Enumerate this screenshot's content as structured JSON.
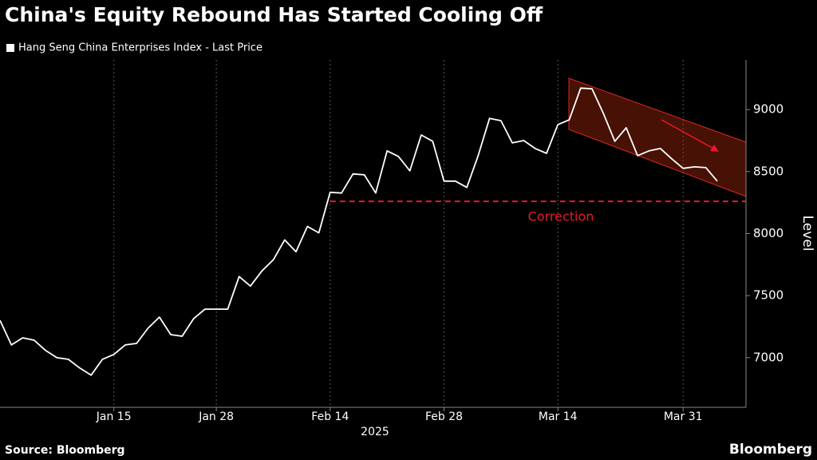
{
  "chart_data": {
    "type": "line",
    "title": "China's Equity Rebound Has Started Cooling Off",
    "series": [
      {
        "name": "Hang Seng China Enterprises Index - Last Price",
        "color": "#ffffff",
        "values": [
          7301,
          7103,
          7160,
          7141,
          7058,
          7000,
          6987,
          6917,
          6859,
          6987,
          7026,
          7103,
          7115,
          7237,
          7327,
          7186,
          7173,
          7314,
          7391,
          7391,
          7391,
          7654,
          7577,
          7699,
          7788,
          7949,
          7853,
          8058,
          8006,
          8333,
          8327,
          8481,
          8474,
          8327,
          8667,
          8622,
          8506,
          8795,
          8744,
          8423,
          8423,
          8372,
          8628,
          8929,
          8910,
          8731,
          8750,
          8686,
          8647,
          8878,
          8917,
          9173,
          9167,
          8968,
          8744,
          8853,
          8628,
          8667,
          8686,
          8603,
          8526,
          8538,
          8532,
          8423
        ]
      }
    ],
    "categories": [
      null,
      null,
      null,
      null,
      null,
      null,
      null,
      null,
      null,
      null,
      "Jan 15",
      null,
      null,
      null,
      null,
      null,
      null,
      null,
      null,
      "Jan 28",
      null,
      null,
      null,
      null,
      null,
      null,
      null,
      null,
      null,
      "Feb 14",
      null,
      null,
      null,
      null,
      null,
      null,
      null,
      null,
      null,
      "Feb 28",
      null,
      null,
      null,
      null,
      null,
      null,
      null,
      null,
      null,
      "Mar 14",
      null,
      null,
      null,
      null,
      null,
      null,
      null,
      null,
      null,
      null,
      "Mar 31",
      null,
      null,
      null
    ],
    "x_label": "2025",
    "y_label": "Level",
    "ylim": [
      6600,
      9400
    ],
    "yticks": [
      7000,
      7500,
      8000,
      8500,
      9000
    ],
    "grid": true,
    "annotation": {
      "label": "Correction",
      "value": 8260,
      "color": "#e8192c"
    },
    "source": "Source: Bloomberg",
    "brand": "Bloomberg"
  }
}
